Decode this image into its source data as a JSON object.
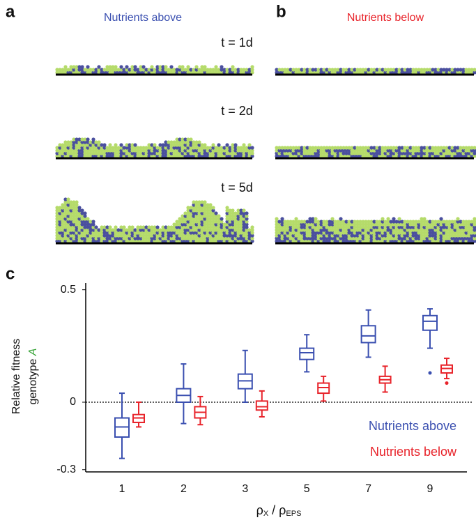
{
  "panels": {
    "a": "a",
    "b": "b",
    "c": "c"
  },
  "panel_a_title": "Nutrients above",
  "panel_b_title": "Nutrients below",
  "time_labels": [
    "t =  1d",
    "t =  2d",
    "t =  5d"
  ],
  "chart_data": {
    "type": "box",
    "y_label_line1": "Relative fitness",
    "y_label_line2": "genotype",
    "y_label_genotype": "A",
    "x_label_parts": [
      "ρ",
      "X",
      " / ρ",
      "EPS"
    ],
    "categories": [
      "1",
      "2",
      "3",
      "5",
      "7",
      "9"
    ],
    "ylim": [
      -0.31,
      0.53
    ],
    "yticks": [
      0.5,
      0,
      -0.3
    ],
    "hline": 0,
    "legend": "lower right",
    "series": [
      {
        "name": "Nutrients above",
        "color": "#3a4fb0",
        "boxes": [
          {
            "whislo": -0.25,
            "q1": -0.155,
            "med": -0.11,
            "q3": -0.07,
            "whishi": 0.04
          },
          {
            "whislo": -0.095,
            "q1": 0.0,
            "med": 0.03,
            "q3": 0.06,
            "whishi": 0.17
          },
          {
            "whislo": 0.0,
            "q1": 0.06,
            "med": 0.095,
            "q3": 0.125,
            "whishi": 0.23
          },
          {
            "whislo": 0.135,
            "q1": 0.19,
            "med": 0.22,
            "q3": 0.24,
            "whishi": 0.3
          },
          {
            "whislo": 0.2,
            "q1": 0.265,
            "med": 0.295,
            "q3": 0.34,
            "whishi": 0.41
          },
          {
            "whislo": 0.24,
            "q1": 0.32,
            "med": 0.36,
            "q3": 0.385,
            "whishi": 0.415,
            "outliers": [
              0.13
            ]
          }
        ]
      },
      {
        "name": "Nutrients below",
        "color": "#e8232a",
        "boxes": [
          {
            "whislo": -0.11,
            "q1": -0.09,
            "med": -0.07,
            "q3": -0.055,
            "whishi": 0.0
          },
          {
            "whislo": -0.1,
            "q1": -0.07,
            "med": -0.045,
            "q3": -0.02,
            "whishi": 0.025
          },
          {
            "whislo": -0.065,
            "q1": -0.035,
            "med": -0.02,
            "q3": 0.005,
            "whishi": 0.05
          },
          {
            "whislo": 0.005,
            "q1": 0.04,
            "med": 0.065,
            "q3": 0.085,
            "whishi": 0.115
          },
          {
            "whislo": 0.045,
            "q1": 0.085,
            "med": 0.1,
            "q3": 0.115,
            "whishi": 0.16
          },
          {
            "whislo": 0.105,
            "q1": 0.13,
            "med": 0.15,
            "q3": 0.165,
            "whishi": 0.195,
            "outliers": [
              0.085
            ]
          }
        ]
      }
    ]
  }
}
